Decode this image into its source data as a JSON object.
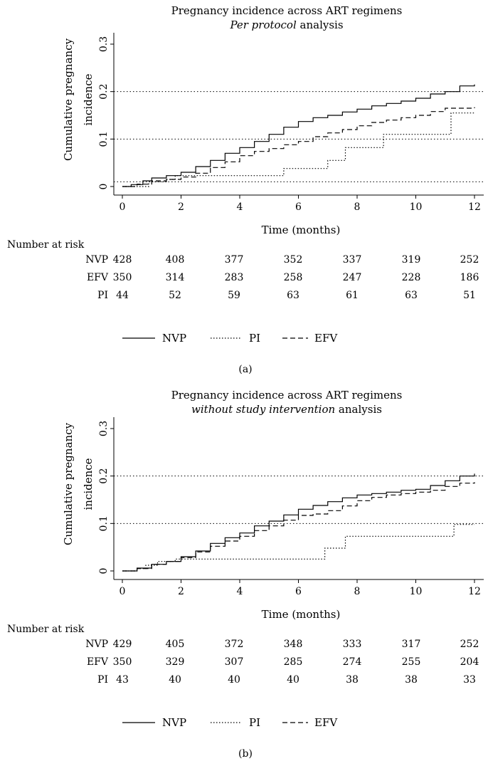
{
  "chart_data": [
    {
      "type": "line",
      "panel_label": "(a)",
      "title": "Pregnancy incidence across ART regimens",
      "subtitle": {
        "italic": "Per protocol",
        "rest": " analysis"
      },
      "xlabel": "Time (months)",
      "ylabel_lines": [
        "Cumulative pregnancy",
        "incidence"
      ],
      "xlim": [
        0,
        12
      ],
      "ylim": [
        0,
        0.3
      ],
      "xticks": [
        "0",
        "2",
        "4",
        "6",
        "8",
        "10",
        "12"
      ],
      "yticks": [
        "0",
        "0.1",
        "0.2",
        "0.3"
      ],
      "reference_lines": [
        0.01,
        0.1,
        0.2
      ],
      "series": [
        {
          "name": "NVP",
          "style": "solid",
          "points": [
            [
              0,
              0
            ],
            [
              0.3,
              0.004
            ],
            [
              0.7,
              0.012
            ],
            [
              1,
              0.018
            ],
            [
              1.5,
              0.023
            ],
            [
              2,
              0.03
            ],
            [
              2.5,
              0.042
            ],
            [
              3,
              0.055
            ],
            [
              3.5,
              0.07
            ],
            [
              4,
              0.082
            ],
            [
              4.5,
              0.095
            ],
            [
              5,
              0.11
            ],
            [
              5.5,
              0.125
            ],
            [
              6,
              0.137
            ],
            [
              6.5,
              0.145
            ],
            [
              7,
              0.15
            ],
            [
              7.5,
              0.157
            ],
            [
              8,
              0.163
            ],
            [
              8.5,
              0.17
            ],
            [
              9,
              0.175
            ],
            [
              9.5,
              0.18
            ],
            [
              10,
              0.186
            ],
            [
              10.5,
              0.195
            ],
            [
              11,
              0.2
            ],
            [
              11.5,
              0.212
            ],
            [
              12,
              0.215
            ]
          ]
        },
        {
          "name": "EFV",
          "style": "dashed",
          "points": [
            [
              0,
              0
            ],
            [
              0.5,
              0.005
            ],
            [
              1,
              0.012
            ],
            [
              1.5,
              0.015
            ],
            [
              2,
              0.02
            ],
            [
              2.5,
              0.028
            ],
            [
              3,
              0.04
            ],
            [
              3.5,
              0.052
            ],
            [
              4,
              0.065
            ],
            [
              4.5,
              0.074
            ],
            [
              5,
              0.08
            ],
            [
              5.5,
              0.088
            ],
            [
              6,
              0.095
            ],
            [
              6.5,
              0.105
            ],
            [
              7,
              0.113
            ],
            [
              7.5,
              0.12
            ],
            [
              8,
              0.128
            ],
            [
              8.5,
              0.135
            ],
            [
              9,
              0.14
            ],
            [
              9.5,
              0.145
            ],
            [
              10,
              0.15
            ],
            [
              10.5,
              0.158
            ],
            [
              11,
              0.165
            ],
            [
              12,
              0.167
            ]
          ]
        },
        {
          "name": "PI",
          "style": "dotted",
          "points": [
            [
              0,
              0
            ],
            [
              0.9,
              0
            ],
            [
              0.9,
              0.01
            ],
            [
              1.5,
              0.015
            ],
            [
              1.8,
              0.023
            ],
            [
              5.5,
              0.023
            ],
            [
              5.5,
              0.038
            ],
            [
              7,
              0.038
            ],
            [
              7,
              0.055
            ],
            [
              7.6,
              0.055
            ],
            [
              7.6,
              0.082
            ],
            [
              8.9,
              0.082
            ],
            [
              8.9,
              0.11
            ],
            [
              10.1,
              0.11
            ],
            [
              10.1,
              0.11
            ],
            [
              11.2,
              0.11
            ],
            [
              11.2,
              0.155
            ],
            [
              12,
              0.155
            ]
          ]
        }
      ],
      "risk_table": {
        "header": "Number at risk",
        "rows": [
          {
            "label": "NVP",
            "values": [
              "428",
              "408",
              "377",
              "352",
              "337",
              "319",
              "252"
            ]
          },
          {
            "label": "EFV",
            "values": [
              "350",
              "314",
              "283",
              "258",
              "247",
              "228",
              "186"
            ]
          },
          {
            "label": "PI",
            "values": [
              "44",
              "52",
              "59",
              "63",
              "61",
              "63",
              "51"
            ]
          }
        ]
      },
      "legend": [
        "NVP",
        "PI",
        "EFV"
      ]
    },
    {
      "type": "line",
      "panel_label": "(b)",
      "title": "Pregnancy incidence across ART regimens",
      "subtitle": {
        "italic": "without study intervention",
        "rest": " analysis"
      },
      "xlabel": "Time (months)",
      "ylabel_lines": [
        "Cumulative pregnancy",
        "incidence"
      ],
      "xlim": [
        0,
        12
      ],
      "ylim": [
        0,
        0.3
      ],
      "xticks": [
        "0",
        "2",
        "4",
        "6",
        "8",
        "10",
        "12"
      ],
      "yticks": [
        "0",
        "0.1",
        "0.2",
        "0.3"
      ],
      "reference_lines": [
        0.1,
        0.2
      ],
      "series": [
        {
          "name": "NVP",
          "style": "solid",
          "points": [
            [
              0,
              0
            ],
            [
              0.5,
              0.006
            ],
            [
              1,
              0.014
            ],
            [
              1.5,
              0.02
            ],
            [
              2,
              0.03
            ],
            [
              2.5,
              0.042
            ],
            [
              3,
              0.058
            ],
            [
              3.5,
              0.07
            ],
            [
              4,
              0.08
            ],
            [
              4.5,
              0.095
            ],
            [
              5,
              0.105
            ],
            [
              5.5,
              0.118
            ],
            [
              6,
              0.13
            ],
            [
              6.5,
              0.138
            ],
            [
              7,
              0.146
            ],
            [
              7.5,
              0.154
            ],
            [
              8,
              0.16
            ],
            [
              8.5,
              0.163
            ],
            [
              9,
              0.166
            ],
            [
              9.5,
              0.17
            ],
            [
              10,
              0.172
            ],
            [
              10.5,
              0.18
            ],
            [
              11,
              0.19
            ],
            [
              11.5,
              0.2
            ],
            [
              12,
              0.205
            ]
          ]
        },
        {
          "name": "EFV",
          "style": "dashed",
          "points": [
            [
              0,
              0
            ],
            [
              0.5,
              0.005
            ],
            [
              1,
              0.014
            ],
            [
              1.5,
              0.02
            ],
            [
              2,
              0.028
            ],
            [
              2.5,
              0.04
            ],
            [
              3,
              0.052
            ],
            [
              3.5,
              0.063
            ],
            [
              4,
              0.073
            ],
            [
              4.5,
              0.085
            ],
            [
              5,
              0.095
            ],
            [
              5.5,
              0.107
            ],
            [
              6,
              0.117
            ],
            [
              6.5,
              0.12
            ],
            [
              7,
              0.127
            ],
            [
              7.5,
              0.137
            ],
            [
              8,
              0.148
            ],
            [
              8.5,
              0.155
            ],
            [
              9,
              0.16
            ],
            [
              9.5,
              0.163
            ],
            [
              10,
              0.166
            ],
            [
              10.5,
              0.17
            ],
            [
              11,
              0.178
            ],
            [
              11.5,
              0.185
            ],
            [
              12,
              0.187
            ]
          ]
        },
        {
          "name": "PI",
          "style": "dotted",
          "points": [
            [
              0,
              0
            ],
            [
              0.5,
              0.005
            ],
            [
              0.8,
              0.012
            ],
            [
              1.2,
              0.02
            ],
            [
              1.8,
              0.025
            ],
            [
              6.9,
              0.025
            ],
            [
              6.9,
              0.048
            ],
            [
              7.6,
              0.048
            ],
            [
              7.6,
              0.073
            ],
            [
              11.3,
              0.073
            ],
            [
              11.3,
              0.098
            ],
            [
              12,
              0.098
            ]
          ]
        }
      ],
      "risk_table": {
        "header": "Number at risk",
        "rows": [
          {
            "label": "NVP",
            "values": [
              "429",
              "405",
              "372",
              "348",
              "333",
              "317",
              "252"
            ]
          },
          {
            "label": "EFV",
            "values": [
              "350",
              "329",
              "307",
              "285",
              "274",
              "255",
              "204"
            ]
          },
          {
            "label": "PI",
            "values": [
              "43",
              "40",
              "40",
              "40",
              "38",
              "38",
              "33"
            ]
          }
        ]
      },
      "legend": [
        "NVP",
        "PI",
        "EFV"
      ]
    }
  ]
}
